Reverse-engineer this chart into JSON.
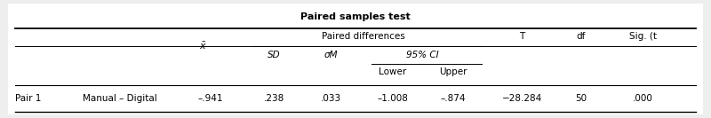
{
  "title": "Paired samples test",
  "bg_color": "#eeeeee",
  "table_bg": "#ffffff",
  "header1_row": "Paired differences",
  "col_T": "T",
  "col_df": "df",
  "col_sig": "Sig. (t",
  "col_SD": "SD",
  "col_oM": "σM",
  "col_95CI": "95% CI",
  "col_lower": "Lower",
  "col_upper": "Upper",
  "pair_label": "Pair 1",
  "pair_name": "Manual – Digital",
  "val_xbar": "–.941",
  "val_SD": ".238",
  "val_oM": ".033",
  "val_lower": "–1.008",
  "val_upper": "–.874",
  "val_T": "−28.284",
  "val_df": "50",
  "val_sig": ".000"
}
